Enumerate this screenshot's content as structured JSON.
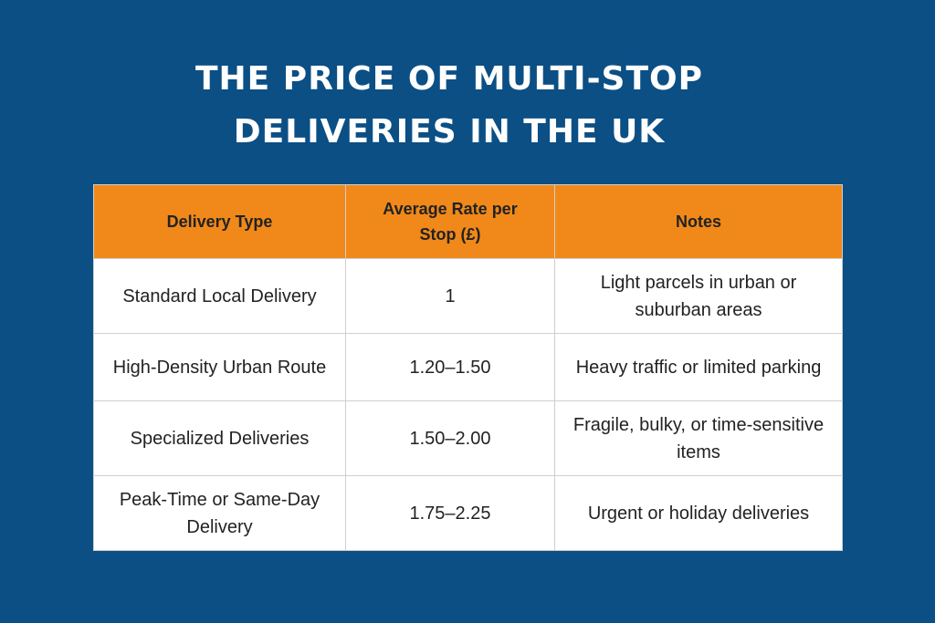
{
  "header": {
    "title": "THE PRICE OF MULTI-STOP DELIVERIES IN THE UK"
  },
  "table": {
    "columns": [
      "Delivery Type",
      "Average Rate per Stop (£)",
      "Notes"
    ],
    "rows": [
      [
        "Standard Local Delivery",
        "1",
        "Light parcels in urban or suburban areas"
      ],
      [
        "High-Density Urban Route",
        "1.20–1.50",
        "Heavy traffic or limited parking"
      ],
      [
        "Specialized Deliveries",
        "1.50–2.00",
        "Fragile, bulky, or time-sensitive items"
      ],
      [
        "Peak-Time or Same-Day Delivery",
        "1.75–2.25",
        "Urgent or holiday deliveries"
      ]
    ]
  }
}
